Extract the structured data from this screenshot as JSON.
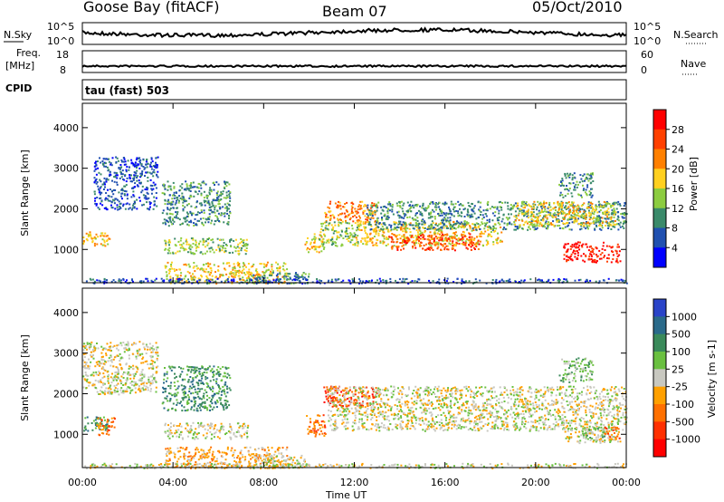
{
  "header": {
    "station": "Goose Bay (fitACF)",
    "beam": "Beam 07",
    "date": "05/Oct/2010"
  },
  "top_panels": {
    "nsky_label": "N.Sky",
    "nsky_ticks": [
      "10^5",
      "10^0"
    ],
    "nsearch_label": "N.Search",
    "nsearch_ticks": [
      "10^5",
      "10^0"
    ],
    "freq_label_1": "Freq.",
    "freq_label_2": "[MHz]",
    "freq_ticks": [
      "18",
      "8"
    ],
    "nave_label": "Nave",
    "nave_ticks": [
      "60",
      "0"
    ],
    "cpid_label": "CPID",
    "cpid_text": "tau (fast) 503"
  },
  "colors": {
    "power": [
      "#0000ff",
      "#2050b0",
      "#3a8a6a",
      "#8ccc40",
      "#ffd020",
      "#ff8000",
      "#ff4000",
      "#ff0000"
    ],
    "velocity": [
      "#2a44c8",
      "#2a6a8a",
      "#3a8a5a",
      "#6ac040",
      "#c8c8c0",
      "#ffa000",
      "#ff7000",
      "#ff3000",
      "#ff0000"
    ]
  },
  "chart_data": [
    {
      "type": "heatmap",
      "quantity": "Power",
      "ylabel": "Slant Range [km]",
      "yticks": [
        1000,
        2000,
        3000,
        4000
      ],
      "ylim": [
        180,
        4600
      ],
      "colorbar_label": "Power [dB]",
      "colorbar_ticks": [
        "4",
        "8",
        "12",
        "16",
        "20",
        "24",
        "28"
      ],
      "regions": [
        {
          "t": [
            0.5,
            3.3
          ],
          "r": [
            2000,
            3300
          ],
          "level": 1
        },
        {
          "t": [
            0.0,
            1.2
          ],
          "r": [
            1100,
            1450
          ],
          "level": 4
        },
        {
          "t": [
            3.5,
            6.5
          ],
          "r": [
            1600,
            2700
          ],
          "level": 2
        },
        {
          "t": [
            3.6,
            7.3
          ],
          "r": [
            900,
            1300
          ],
          "level": 3
        },
        {
          "t": [
            3.6,
            9.0
          ],
          "r": [
            180,
            700
          ],
          "level": 4
        },
        {
          "t": [
            7.3,
            10.0
          ],
          "r": [
            180,
            450
          ],
          "level": 2
        },
        {
          "t": [
            9.8,
            10.7
          ],
          "r": [
            950,
            1400
          ],
          "level": 4
        },
        {
          "t": [
            10.6,
            13.0
          ],
          "r": [
            1700,
            2200
          ],
          "level": 5
        },
        {
          "t": [
            10.4,
            12.2
          ],
          "r": [
            1100,
            1700
          ],
          "level": 3
        },
        {
          "t": [
            12.0,
            18.5
          ],
          "r": [
            1100,
            1700
          ],
          "level": 4
        },
        {
          "t": [
            13.5,
            17.5
          ],
          "r": [
            1000,
            1400
          ],
          "level": 6
        },
        {
          "t": [
            12.5,
            24.0
          ],
          "r": [
            1500,
            2200
          ],
          "level": 2
        },
        {
          "t": [
            19.0,
            23.5
          ],
          "r": [
            1600,
            2200
          ],
          "level": 4
        },
        {
          "t": [
            21.2,
            23.7
          ],
          "r": [
            700,
            1200
          ],
          "level": 7
        },
        {
          "t": [
            21.0,
            22.5
          ],
          "r": [
            2300,
            2900
          ],
          "level": 2
        },
        {
          "t": [
            0.0,
            24.0
          ],
          "r": [
            180,
            300
          ],
          "level": 1
        }
      ]
    },
    {
      "type": "heatmap",
      "quantity": "Velocity",
      "xlabel": "Time UT",
      "ylabel": "Slant Range [km]",
      "xticks": [
        "00:00",
        "04:00",
        "08:00",
        "12:00",
        "16:00",
        "20:00",
        "00:00"
      ],
      "xlim": [
        0,
        24
      ],
      "yticks": [
        1000,
        2000,
        3000,
        4000
      ],
      "ylim": [
        180,
        4600
      ],
      "colorbar_label": "Velocity [m s-1]",
      "colorbar_ticks": [
        "1000",
        "500",
        "100",
        "25",
        "-25",
        "-100",
        "-500",
        "-1000"
      ],
      "regions": [
        {
          "t": [
            0.0,
            3.3
          ],
          "r": [
            2000,
            3300
          ],
          "level": 4
        },
        {
          "t": [
            0.0,
            1.2
          ],
          "r": [
            1100,
            1450
          ],
          "level": 2
        },
        {
          "t": [
            0.6,
            1.4
          ],
          "r": [
            1000,
            1450
          ],
          "level": 6
        },
        {
          "t": [
            3.5,
            6.5
          ],
          "r": [
            1600,
            2700
          ],
          "level": 2
        },
        {
          "t": [
            3.6,
            7.3
          ],
          "r": [
            900,
            1300
          ],
          "level": 4
        },
        {
          "t": [
            3.6,
            9.0
          ],
          "r": [
            180,
            700
          ],
          "level": 5
        },
        {
          "t": [
            7.3,
            10.0
          ],
          "r": [
            180,
            500
          ],
          "level": 4
        },
        {
          "t": [
            9.8,
            10.7
          ],
          "r": [
            950,
            1500
          ],
          "level": 6
        },
        {
          "t": [
            10.6,
            13.0
          ],
          "r": [
            1700,
            2200
          ],
          "level": 7
        },
        {
          "t": [
            10.8,
            24.0
          ],
          "r": [
            1100,
            2200
          ],
          "level": 4
        },
        {
          "t": [
            21.2,
            23.7
          ],
          "r": [
            800,
            1200
          ],
          "level": 4
        },
        {
          "t": [
            22.0,
            23.0
          ],
          "r": [
            900,
            1200
          ],
          "level": 3
        },
        {
          "t": [
            23.0,
            23.7
          ],
          "r": [
            900,
            1200
          ],
          "level": 6
        },
        {
          "t": [
            21.0,
            22.5
          ],
          "r": [
            2300,
            2900
          ],
          "level": 3
        },
        {
          "t": [
            0.0,
            24.0
          ],
          "r": [
            180,
            300
          ],
          "level": 4
        }
      ]
    }
  ]
}
